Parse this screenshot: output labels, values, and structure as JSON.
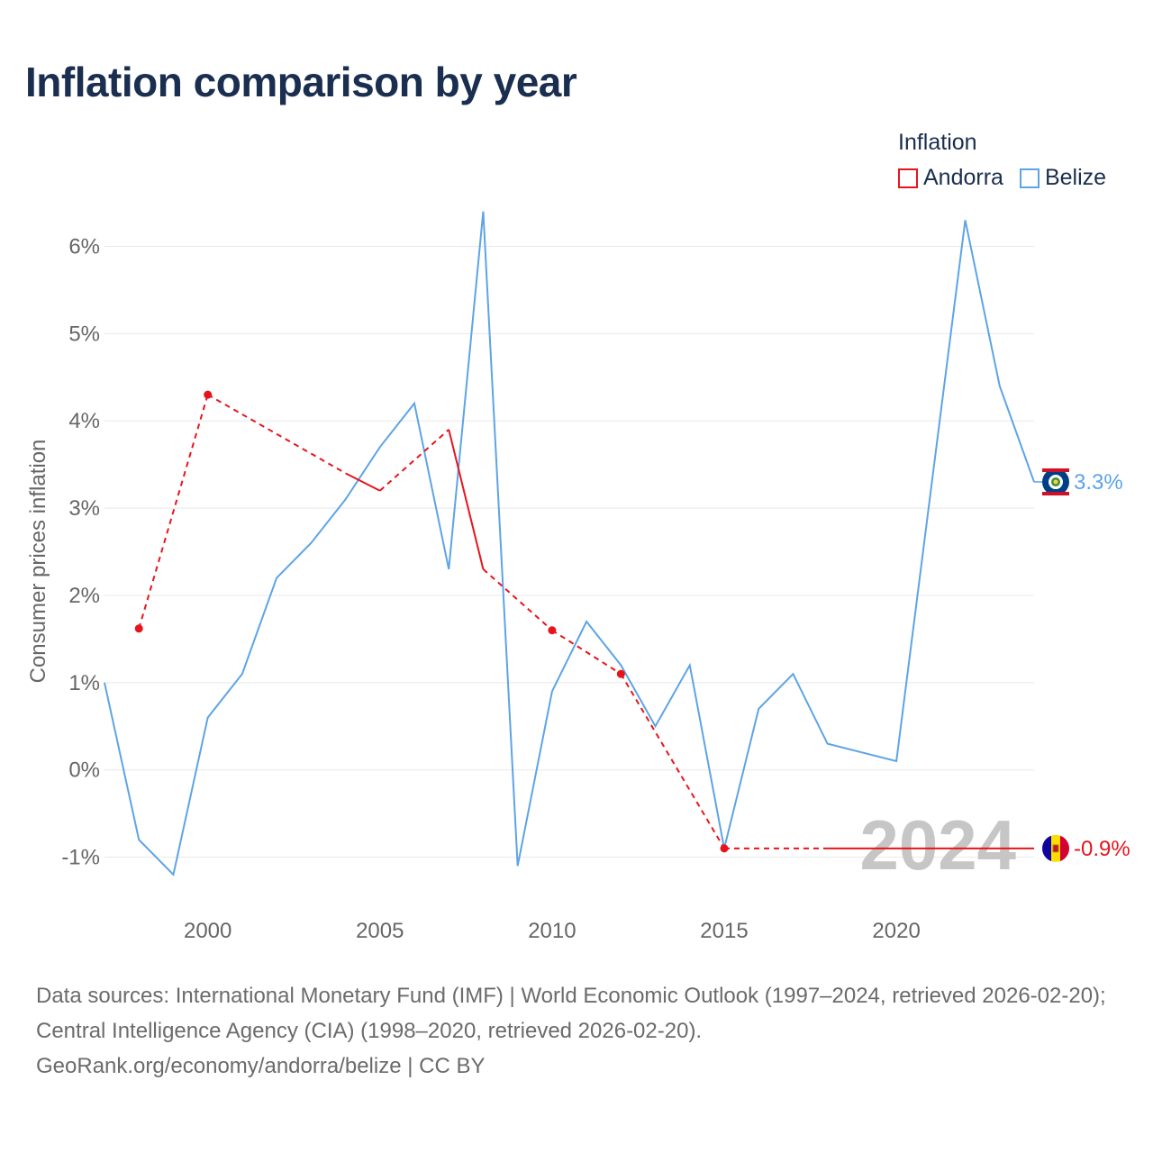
{
  "title": "Inflation comparison by year",
  "legend": {
    "title": "Inflation",
    "items": [
      {
        "label": "Andorra",
        "color": "#e8141c"
      },
      {
        "label": "Belize",
        "color": "#5da4e6"
      }
    ]
  },
  "year_watermark": "2024",
  "footer": {
    "sources": "Data sources: International Monetary Fund (IMF) | World Economic Outlook (1997–2024, retrieved 2026-02-20); Central Intelligence Agency (CIA) (1998–2020, retrieved 2026-02-20).",
    "credit": "GeoRank.org/economy/andorra/belize | CC BY"
  },
  "end_labels": [
    {
      "series": "Belize",
      "text": "3.3%",
      "flag_icon": "belize-flag-icon",
      "color": "#5da4e6"
    },
    {
      "series": "Andorra",
      "text": "-0.9%",
      "flag_icon": "andorra-flag-icon",
      "color": "#e8141c"
    }
  ],
  "chart_data": {
    "type": "line",
    "title": "Inflation comparison by year",
    "xlabel": "",
    "ylabel": "Consumer prices inflation",
    "xlim": [
      1997,
      2024
    ],
    "ylim": [
      -1.5,
      6.8
    ],
    "x_ticks": [
      2000,
      2005,
      2010,
      2015,
      2020
    ],
    "x_tick_labels": [
      "2000",
      "2005",
      "2010",
      "2015",
      "2020"
    ],
    "y_ticks": [
      -1,
      0,
      1,
      2,
      3,
      4,
      5,
      6
    ],
    "y_tick_labels": [
      "-1%",
      "0%",
      "1%",
      "2%",
      "3%",
      "4%",
      "5%",
      "6%"
    ],
    "grid": true,
    "legend_position": "top-right",
    "series": [
      {
        "name": "Andorra",
        "color": "#e8141c",
        "points": [
          {
            "x": 1998,
            "y": 1.62
          },
          {
            "x": 2000,
            "y": 4.3
          },
          {
            "x": 2004,
            "y": 3.4
          },
          {
            "x": 2005,
            "y": 3.2
          },
          {
            "x": 2007,
            "y": 3.9
          },
          {
            "x": 2008,
            "y": 2.3
          },
          {
            "x": 2010,
            "y": 1.6
          },
          {
            "x": 2012,
            "y": 1.1
          },
          {
            "x": 2015,
            "y": -0.9
          },
          {
            "x": 2018,
            "y": -0.9
          },
          {
            "x": 2024,
            "y": -0.9
          }
        ],
        "segments": [
          {
            "from": 1998,
            "to": 2000,
            "style": "dashed"
          },
          {
            "from": 2000,
            "to": 2004,
            "style": "dashed"
          },
          {
            "from": 2004,
            "to": 2005,
            "style": "solid"
          },
          {
            "from": 2005,
            "to": 2007,
            "style": "dashed"
          },
          {
            "from": 2007,
            "to": 2008,
            "style": "solid"
          },
          {
            "from": 2008,
            "to": 2010,
            "style": "dashed"
          },
          {
            "from": 2010,
            "to": 2012,
            "style": "dashed"
          },
          {
            "from": 2012,
            "to": 2015,
            "style": "dashed"
          },
          {
            "from": 2015,
            "to": 2018,
            "style": "dashed"
          },
          {
            "from": 2018,
            "to": 2024,
            "style": "solid"
          }
        ],
        "markers": [
          1998,
          2000,
          2010,
          2012,
          2015
        ]
      },
      {
        "name": "Belize",
        "color": "#5da4e6",
        "points": [
          {
            "x": 1997,
            "y": 1.0
          },
          {
            "x": 1998,
            "y": -0.8
          },
          {
            "x": 1999,
            "y": -1.2
          },
          {
            "x": 2000,
            "y": 0.6
          },
          {
            "x": 2001,
            "y": 1.1
          },
          {
            "x": 2002,
            "y": 2.2
          },
          {
            "x": 2003,
            "y": 2.6
          },
          {
            "x": 2004,
            "y": 3.1
          },
          {
            "x": 2005,
            "y": 3.7
          },
          {
            "x": 2006,
            "y": 4.2
          },
          {
            "x": 2007,
            "y": 2.3
          },
          {
            "x": 2008,
            "y": 6.4
          },
          {
            "x": 2009,
            "y": -1.1
          },
          {
            "x": 2010,
            "y": 0.9
          },
          {
            "x": 2011,
            "y": 1.7
          },
          {
            "x": 2012,
            "y": 1.2
          },
          {
            "x": 2013,
            "y": 0.5
          },
          {
            "x": 2014,
            "y": 1.2
          },
          {
            "x": 2015,
            "y": -0.9
          },
          {
            "x": 2016,
            "y": 0.7
          },
          {
            "x": 2017,
            "y": 1.1
          },
          {
            "x": 2018,
            "y": 0.3
          },
          {
            "x": 2019,
            "y": 0.2
          },
          {
            "x": 2020,
            "y": 0.1
          },
          {
            "x": 2021,
            "y": 3.2
          },
          {
            "x": 2022,
            "y": 6.3
          },
          {
            "x": 2023,
            "y": 4.4
          },
          {
            "x": 2024,
            "y": 3.3
          }
        ]
      }
    ]
  }
}
